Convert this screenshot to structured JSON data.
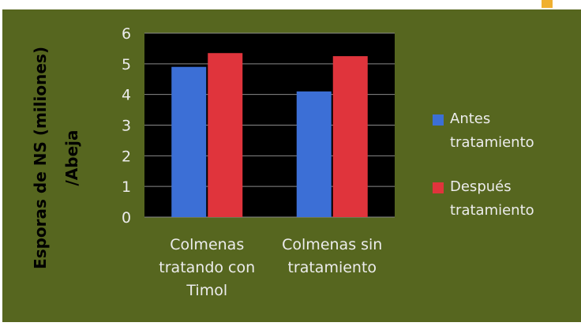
{
  "chart_data": {
    "type": "bar",
    "ylabel": [
      "Esporas de NS (miliones)",
      "/Abeja"
    ],
    "categories": [
      "Colmenas tratando con Timol",
      "Colmenas sin tratamiento"
    ],
    "series": [
      {
        "name": "Antes tratamiento",
        "color": "#3c6fd6",
        "values": [
          4.9,
          4.1
        ]
      },
      {
        "name": "Después tratamiento",
        "color": "#e0343c",
        "values": [
          5.35,
          5.25
        ]
      }
    ],
    "ylim": [
      0,
      6
    ],
    "yticks": [
      0,
      1,
      2,
      3,
      4,
      5,
      6
    ],
    "grid": true,
    "legend": "right"
  }
}
